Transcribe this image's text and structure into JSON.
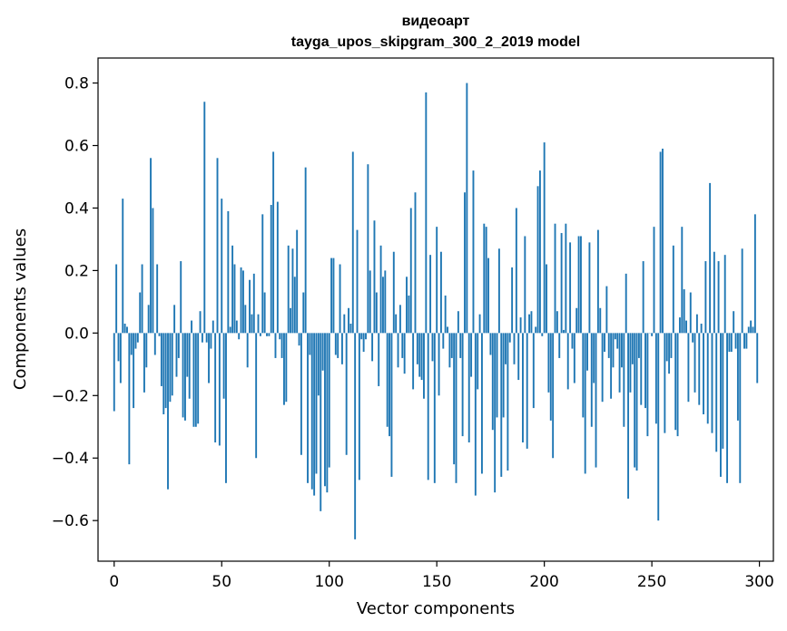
{
  "chart_data": {
    "type": "bar",
    "title": "видеоарт",
    "subtitle": "tayga_upos_skipgram_300_2_2019 model",
    "xlabel": "Vector components",
    "ylabel": "Components values",
    "xlim": [
      -7.5,
      306.5
    ],
    "ylim": [
      -0.73,
      0.88
    ],
    "xticks": [
      0,
      50,
      100,
      150,
      200,
      250,
      300
    ],
    "yticks": [
      -0.6,
      -0.4,
      -0.2,
      0.0,
      0.2,
      0.4,
      0.6,
      0.8
    ],
    "xtick_labels": [
      "0",
      "50",
      "100",
      "150",
      "200",
      "250",
      "300"
    ],
    "ytick_labels": [
      "−0.6",
      "−0.4",
      "−0.2",
      "0.0",
      "0.2",
      "0.4",
      "0.6",
      "0.8"
    ],
    "bar_color": "#1f77b4",
    "values": [
      -0.25,
      0.22,
      -0.09,
      -0.16,
      0.43,
      0.03,
      0.02,
      -0.42,
      -0.07,
      -0.24,
      -0.05,
      -0.03,
      0.13,
      0.22,
      -0.19,
      -0.11,
      0.09,
      0.56,
      0.4,
      -0.07,
      0.22,
      -0.01,
      -0.17,
      -0.26,
      -0.24,
      -0.5,
      -0.22,
      -0.2,
      0.09,
      -0.14,
      -0.08,
      0.23,
      -0.27,
      -0.28,
      -0.14,
      -0.21,
      0.04,
      -0.3,
      -0.3,
      -0.29,
      0.07,
      -0.03,
      0.74,
      -0.03,
      -0.16,
      -0.05,
      0.04,
      -0.35,
      0.56,
      -0.36,
      0.43,
      -0.21,
      -0.48,
      0.39,
      0.02,
      0.28,
      0.22,
      0.04,
      -0.02,
      0.21,
      0.2,
      0.09,
      -0.11,
      0.17,
      0.06,
      0.19,
      -0.4,
      0.06,
      -0.01,
      0.38,
      0.13,
      -0.01,
      -0.01,
      0.41,
      0.58,
      -0.08,
      0.42,
      -0.02,
      -0.08,
      -0.23,
      -0.22,
      0.28,
      0.08,
      0.27,
      0.18,
      0.33,
      -0.04,
      -0.39,
      0.13,
      0.53,
      -0.48,
      -0.07,
      -0.5,
      -0.52,
      -0.45,
      -0.2,
      -0.57,
      -0.12,
      -0.49,
      -0.51,
      -0.43,
      0.24,
      0.24,
      -0.07,
      -0.08,
      0.22,
      -0.1,
      0.06,
      -0.39,
      0.08,
      0.03,
      0.58,
      -0.66,
      0.33,
      -0.47,
      -0.02,
      -0.06,
      -0.02,
      0.54,
      0.2,
      -0.09,
      0.36,
      0.13,
      -0.17,
      0.28,
      0.18,
      0.2,
      -0.3,
      -0.33,
      -0.46,
      0.26,
      0.06,
      -0.11,
      0.09,
      -0.08,
      -0.13,
      0.18,
      0.12,
      0.4,
      -0.18,
      0.45,
      -0.1,
      -0.14,
      -0.15,
      -0.21,
      0.77,
      -0.47,
      0.25,
      -0.09,
      -0.48,
      0.34,
      -0.2,
      0.26,
      -0.05,
      0.12,
      0.02,
      -0.11,
      -0.08,
      -0.42,
      -0.48,
      0.07,
      -0.08,
      -0.33,
      0.45,
      0.8,
      -0.35,
      -0.14,
      0.52,
      -0.52,
      -0.18,
      0.06,
      -0.45,
      0.35,
      0.34,
      0.24,
      -0.07,
      -0.31,
      -0.51,
      -0.27,
      0.27,
      -0.46,
      -0.27,
      -0.1,
      -0.44,
      -0.03,
      0.21,
      -0.1,
      0.4,
      -0.15,
      0.05,
      -0.35,
      0.31,
      -0.37,
      0.06,
      0.07,
      -0.24,
      0.02,
      0.47,
      0.52,
      -0.01,
      0.61,
      0.22,
      -0.19,
      -0.28,
      -0.4,
      0.35,
      0.07,
      -0.08,
      0.32,
      0.01,
      0.35,
      -0.18,
      0.29,
      -0.05,
      -0.16,
      0.08,
      0.31,
      0.31,
      -0.27,
      -0.45,
      -0.12,
      0.29,
      -0.3,
      -0.16,
      -0.43,
      0.33,
      0.08,
      -0.22,
      -0.06,
      0.15,
      -0.08,
      -0.21,
      -0.11,
      -0.02,
      -0.05,
      -0.19,
      -0.11,
      -0.3,
      0.19,
      -0.53,
      -0.19,
      -0.1,
      -0.43,
      -0.44,
      -0.08,
      -0.23,
      0.23,
      -0.24,
      -0.33,
      0.0,
      -0.01,
      0.34,
      -0.29,
      -0.6,
      0.58,
      0.59,
      -0.32,
      -0.09,
      -0.13,
      -0.08,
      0.28,
      -0.31,
      -0.33,
      0.05,
      0.34,
      0.14,
      0.04,
      -0.22,
      0.13,
      -0.03,
      -0.19,
      0.06,
      -0.23,
      0.03,
      -0.26,
      0.23,
      -0.29,
      0.48,
      -0.32,
      0.26,
      -0.38,
      0.23,
      -0.46,
      -0.37,
      0.25,
      -0.48,
      -0.06,
      -0.06,
      0.07,
      -0.05,
      -0.28,
      -0.48,
      0.27,
      -0.05,
      -0.05,
      0.02,
      0.04,
      0.02,
      0.38,
      -0.16
    ]
  }
}
